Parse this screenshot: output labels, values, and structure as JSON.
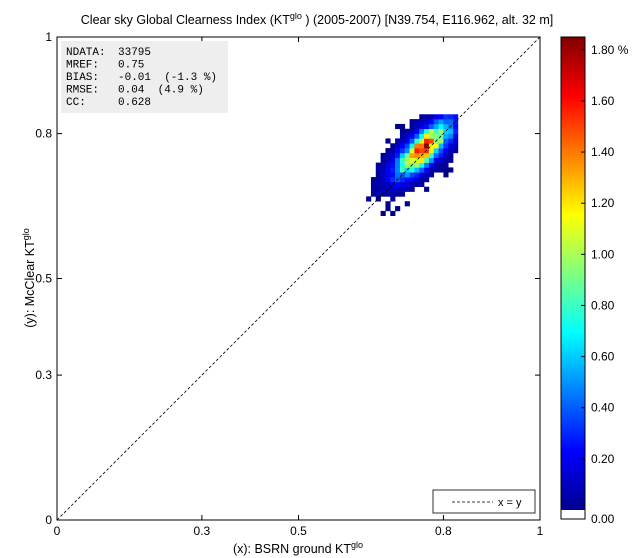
{
  "chart_data": {
    "type": "heatmap",
    "title": {
      "main": "Clear sky Global Clearness Index (KT",
      "sup": "glo",
      "rest": " ) (2005-2007) [N39.754, E116.962, alt. 32 m]"
    },
    "xlabel": {
      "main": "(x): BSRN ground KT",
      "sup": "glo"
    },
    "ylabel": {
      "main": "(y): McClear KT",
      "sup": "glo"
    },
    "xlim": [
      0,
      1
    ],
    "ylim": [
      0,
      1
    ],
    "xticks": [
      {
        "value": 0,
        "label": "0"
      },
      {
        "value": 0.3,
        "label": "0.3"
      },
      {
        "value": 0.5,
        "label": "0.5"
      },
      {
        "value": 0.8,
        "label": "0.8"
      },
      {
        "value": 1,
        "label": "1"
      }
    ],
    "yticks": [
      {
        "value": 0,
        "label": "0"
      },
      {
        "value": 0.3,
        "label": "0.3"
      },
      {
        "value": 0.5,
        "label": "0.5"
      },
      {
        "value": 0.8,
        "label": "0.8"
      },
      {
        "value": 1,
        "label": "1"
      }
    ],
    "stats": [
      {
        "label": "NDATA:",
        "value": "33795"
      },
      {
        "label": "MREF:",
        "value": "0.75"
      },
      {
        "label": "BIAS:",
        "value": "-0.01  (-1.3 %)"
      },
      {
        "label": "RMSE:",
        "value": "0.04  (4.9 %)"
      },
      {
        "label": "CC:",
        "value": "0.628"
      }
    ],
    "legend": {
      "entry": "x = y",
      "placement": "bottom-right"
    },
    "colorbar": {
      "min": 0,
      "max": 1.85,
      "ticks": [
        {
          "value": 0,
          "label": "0.00"
        },
        {
          "value": 0.2,
          "label": "0.20"
        },
        {
          "value": 0.4,
          "label": "0.40"
        },
        {
          "value": 0.6,
          "label": "0.60"
        },
        {
          "value": 0.8,
          "label": "0.80"
        },
        {
          "value": 1.0,
          "label": "1.00"
        },
        {
          "value": 1.2,
          "label": "1.20"
        },
        {
          "value": 1.4,
          "label": "1.40"
        },
        {
          "value": 1.6,
          "label": "1.60"
        },
        {
          "value": 1.8,
          "label": "1.80 %"
        }
      ]
    },
    "density": {
      "bin_size": 0.01,
      "peak_x": 0.755,
      "peak_y": 0.765,
      "peak_percent": 1.8,
      "x_range": [
        0.62,
        0.82
      ],
      "y_range": [
        0.56,
        0.83
      ]
    }
  }
}
